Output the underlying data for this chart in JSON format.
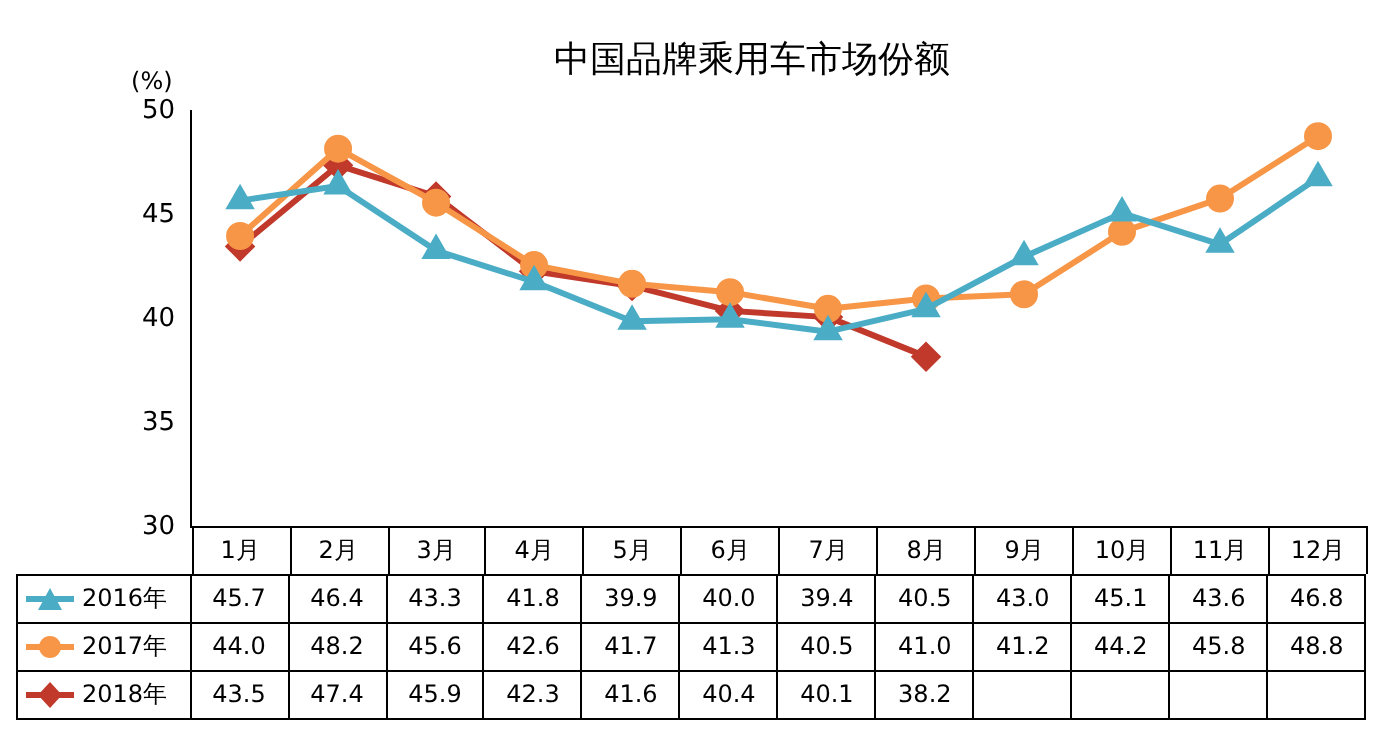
{
  "chart_data": {
    "type": "line",
    "title": "中国品牌乘用车市场份额",
    "ylabel": "(%)",
    "categories": [
      "1月",
      "2月",
      "3月",
      "4月",
      "5月",
      "6月",
      "7月",
      "8月",
      "9月",
      "10月",
      "11月",
      "12月"
    ],
    "ylim": [
      30,
      50
    ],
    "yticks": [
      30,
      35,
      40,
      45,
      50
    ],
    "legend": "bottom",
    "series": [
      {
        "name": "2016年",
        "color": "#4bacc6",
        "marker": "triangle",
        "values": [
          45.7,
          46.4,
          43.3,
          41.8,
          39.9,
          40.0,
          39.4,
          40.5,
          43.0,
          45.1,
          43.6,
          46.8
        ],
        "value_labels": [
          "45.7",
          "46.4",
          "43.3",
          "41.8",
          "39.9",
          "40.0",
          "39.4",
          "40.5",
          "43.0",
          "45.1",
          "43.6",
          "46.8"
        ]
      },
      {
        "name": "2017年",
        "color": "#f79646",
        "marker": "circle",
        "values": [
          44.0,
          48.2,
          45.6,
          42.6,
          41.7,
          41.3,
          40.5,
          41.0,
          41.2,
          44.2,
          45.8,
          48.8
        ],
        "value_labels": [
          "44.0",
          "48.2",
          "45.6",
          "42.6",
          "41.7",
          "41.3",
          "40.5",
          "41.0",
          "41.2",
          "44.2",
          "45.8",
          "48.8"
        ]
      },
      {
        "name": "2018年",
        "color": "#c0392b",
        "marker": "diamond",
        "values": [
          43.5,
          47.4,
          45.9,
          42.3,
          41.6,
          40.4,
          40.1,
          38.2,
          null,
          null,
          null,
          null
        ],
        "value_labels": [
          "43.5",
          "47.4",
          "45.9",
          "42.3",
          "41.6",
          "40.4",
          "40.1",
          "38.2",
          null,
          null,
          null,
          null
        ]
      }
    ]
  }
}
